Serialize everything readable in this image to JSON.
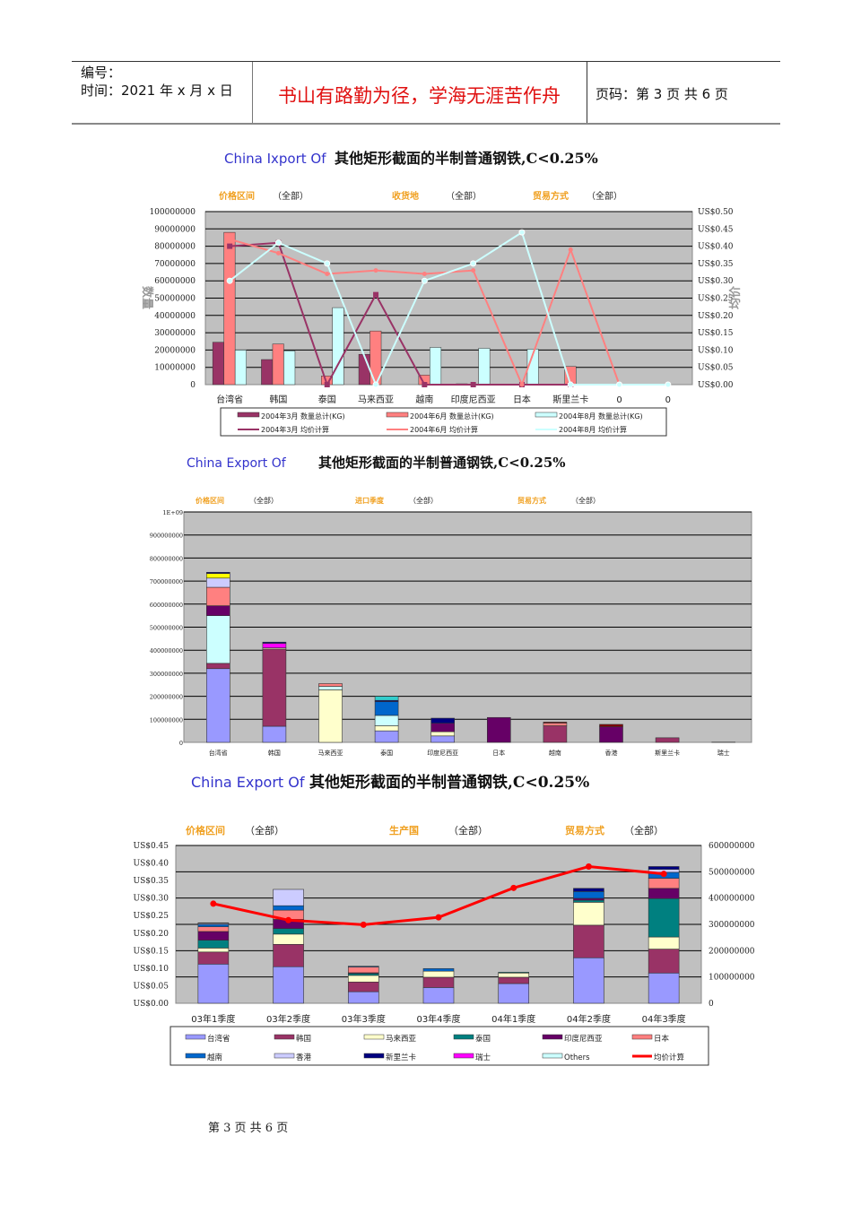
{
  "header": {
    "number_label": "编号：",
    "date_label": "时间：2021 年 x 月 x 日",
    "motto": "书山有路勤为径，学海无涯苦作舟",
    "page_info": "页码：第 3 页  共 6 页"
  },
  "footer": {
    "text": "第 3 页 共 6 页"
  },
  "colors": {
    "plot_bg": "#c0c0c0",
    "filter_label": "#f0a020",
    "title_en": "#3333cc",
    "motto": "#e01010"
  },
  "chart_data": [
    {
      "type": "bar+line",
      "title_en": "China Ixport Of",
      "title_cn": "其他矩形截面的半制普通钢铁,C<0.25%",
      "filters": [
        {
          "label": "价格区间",
          "value": "（全部）"
        },
        {
          "label": "收货地",
          "value": "（全部）"
        },
        {
          "label": "贸易方式",
          "value": "（全部）"
        }
      ],
      "ylabel": "数量",
      "y2label": "均价",
      "ylim": [
        0,
        100000000
      ],
      "y2lim": [
        0,
        0.5
      ],
      "yticks": [
        "0",
        "10000000",
        "20000000",
        "30000000",
        "40000000",
        "50000000",
        "60000000",
        "70000000",
        "80000000",
        "90000000",
        "100000000"
      ],
      "y2ticks": [
        "US$0.00",
        "US$0.05",
        "US$0.10",
        "US$0.15",
        "US$0.20",
        "US$0.25",
        "US$0.30",
        "US$0.35",
        "US$0.40",
        "US$0.45",
        "US$0.50"
      ],
      "categories": [
        "台湾省",
        "韩国",
        "泰国",
        "马来西亚",
        "越南",
        "印度尼西亚",
        "日本",
        "斯里兰卡",
        "0",
        "0"
      ],
      "bar_series": [
        {
          "name": "2004年3月 数量总计(KG)",
          "color": "#993366",
          "values": [
            24500000,
            14500000,
            0,
            17500000,
            0,
            500000,
            0,
            0,
            0,
            0
          ]
        },
        {
          "name": "2004年6月 数量总计(KG)",
          "color": "#ff8080",
          "values": [
            88000000,
            23500000,
            5000000,
            31000000,
            5500000,
            0,
            0,
            10500000,
            0,
            0
          ]
        },
        {
          "name": "2004年8月 数量总计(KG)",
          "color": "#ccffff",
          "values": [
            20000000,
            19500000,
            44500000,
            0,
            21500000,
            21000000,
            20500000,
            0,
            0,
            0
          ]
        }
      ],
      "line_series": [
        {
          "name": "2004年3月 均价计算",
          "color": "#993366",
          "marker": "square",
          "values": [
            0.4,
            0.41,
            0,
            0.26,
            0,
            0,
            0,
            0,
            null,
            null
          ]
        },
        {
          "name": "2004年6月 均价计算",
          "color": "#ff8080",
          "marker": "plus",
          "values": [
            0.42,
            0.38,
            0.32,
            0.33,
            0.32,
            0.33,
            0,
            0.39,
            0,
            null
          ]
        },
        {
          "name": "2004年8月 均价计算",
          "color": "#ccffff",
          "marker": "circle",
          "values": [
            0.3,
            0.41,
            0.35,
            0,
            0.3,
            0.35,
            0.44,
            0,
            0,
            0
          ]
        }
      ],
      "grid": true,
      "legend": "bottom"
    },
    {
      "type": "stacked-bar",
      "title_en": "China Export Of",
      "title_cn": "其他矩形截面的半制普通钢铁,C<0.25%",
      "filters": [
        {
          "label": "价格区间",
          "value": "（全部）"
        },
        {
          "label": "进口季度",
          "value": "（全部）"
        },
        {
          "label": "贸易方式",
          "value": "（全部）"
        }
      ],
      "ylim": [
        0,
        1000000000
      ],
      "yticks": [
        "0",
        "100000000",
        "200000000",
        "300000000",
        "400000000",
        "500000000",
        "600000000",
        "700000000",
        "800000000",
        "900000000",
        "1E+09"
      ],
      "categories": [
        "台湾省",
        "韩国",
        "马来西亚",
        "泰国",
        "印度尼西亚",
        "日本",
        "越南",
        "香港",
        "斯里兰卡",
        "瑞士"
      ],
      "series": [
        {
          "color": "#9999ff",
          "values": [
            320000000,
            70000000,
            0,
            50000000,
            28000000,
            0,
            0,
            0,
            0,
            0
          ]
        },
        {
          "color": "#993366",
          "values": [
            23000000,
            335000000,
            0,
            0,
            0,
            0,
            72000000,
            0,
            20000000,
            1000000
          ]
        },
        {
          "color": "#ffffcc",
          "values": [
            0,
            5000000,
            228000000,
            22000000,
            18000000,
            0,
            0,
            0,
            0,
            0
          ]
        },
        {
          "color": "#ccffff",
          "values": [
            207000000,
            0,
            15000000,
            45000000,
            0,
            0,
            0,
            0,
            0,
            0
          ]
        },
        {
          "color": "#660066",
          "values": [
            43000000,
            0,
            0,
            0,
            37000000,
            108000000,
            0,
            68000000,
            0,
            0
          ]
        },
        {
          "color": "#ff8080",
          "values": [
            80000000,
            0,
            12000000,
            0,
            0,
            0,
            12000000,
            0,
            0,
            0
          ]
        },
        {
          "color": "#0066cc",
          "values": [
            0,
            0,
            0,
            60000000,
            0,
            0,
            0,
            0,
            0,
            0
          ]
        },
        {
          "color": "#ccccff",
          "values": [
            40000000,
            0,
            0,
            0,
            0,
            0,
            0,
            0,
            0,
            0
          ]
        },
        {
          "color": "#ffff00",
          "values": [
            20000000,
            0,
            0,
            0,
            0,
            0,
            0,
            0,
            0,
            0
          ]
        },
        {
          "color": "#ff00ff",
          "values": [
            0,
            20000000,
            0,
            0,
            0,
            0,
            0,
            0,
            0,
            0
          ]
        },
        {
          "color": "#000080",
          "values": [
            5000000,
            5000000,
            0,
            5000000,
            22000000,
            0,
            0,
            0,
            0,
            0
          ]
        },
        {
          "color": "#33cccc",
          "values": [
            0,
            0,
            0,
            18000000,
            0,
            0,
            0,
            0,
            0,
            0
          ]
        },
        {
          "color": "#800000",
          "values": [
            0,
            0,
            0,
            0,
            0,
            0,
            4000000,
            10000000,
            0,
            0
          ]
        }
      ],
      "grid": true
    },
    {
      "type": "stacked-bar+line",
      "title_en": "China Export Of",
      "title_cn": "其他矩形截面的半制普通钢铁,C<0.25%",
      "filters": [
        {
          "label": "价格区间",
          "value": "（全部）"
        },
        {
          "label": "生产国",
          "value": "（全部）"
        },
        {
          "label": "贸易方式",
          "value": "（全部）"
        }
      ],
      "ylim": [
        0,
        600000000
      ],
      "y2lim": [
        0,
        0.45
      ],
      "yticks": [
        "0",
        "100000000",
        "200000000",
        "300000000",
        "400000000",
        "500000000",
        "600000000"
      ],
      "y2ticks": [
        "US$0.00",
        "US$0.05",
        "US$0.10",
        "US$0.15",
        "US$0.20",
        "US$0.25",
        "US$0.30",
        "US$0.35",
        "US$0.40",
        "US$0.45"
      ],
      "categories": [
        "03年1季度",
        "03年2季度",
        "03年3季度",
        "03年4季度",
        "04年1季度",
        "04年2季度",
        "04年3季度"
      ],
      "series": [
        {
          "name": "台湾省",
          "color": "#9999ff",
          "values": [
            149000000,
            139000000,
            44000000,
            60000000,
            75000000,
            173000000,
            115000000
          ]
        },
        {
          "name": "韩国",
          "color": "#993366",
          "values": [
            46000000,
            85000000,
            37000000,
            39000000,
            24000000,
            124000000,
            91000000
          ]
        },
        {
          "name": "马来西亚",
          "color": "#ffffcc",
          "values": [
            15000000,
            39000000,
            25000000,
            23000000,
            16000000,
            87000000,
            46000000
          ]
        },
        {
          "name": "泰国",
          "color": "#008080",
          "values": [
            30000000,
            21000000,
            7000000,
            0,
            3000000,
            8000000,
            146000000
          ]
        },
        {
          "name": "印度尼西亚",
          "color": "#660066",
          "values": [
            33000000,
            35000000,
            3000000,
            0,
            0,
            7000000,
            39000000
          ]
        },
        {
          "name": "日本",
          "color": "#ff8080",
          "values": [
            18000000,
            35000000,
            22000000,
            0,
            0,
            0,
            38000000
          ]
        },
        {
          "name": "越南",
          "color": "#0066cc",
          "values": [
            9000000,
            17000000,
            3000000,
            10000000,
            0,
            26000000,
            23000000
          ]
        },
        {
          "name": "香港",
          "color": "#ccccff",
          "values": [
            4000000,
            62000000,
            0,
            0,
            0,
            0,
            11000000
          ]
        },
        {
          "name": "新里兰卡",
          "color": "#000080",
          "values": [
            2000000,
            0,
            0,
            0,
            0,
            12000000,
            11000000
          ]
        },
        {
          "name": "瑞士",
          "color": "#ff00ff",
          "values": [
            0,
            0,
            0,
            0,
            0,
            0,
            0
          ]
        },
        {
          "name": "Others",
          "color": "#ccffff",
          "values": [
            0,
            0,
            0,
            0,
            0,
            0,
            0
          ]
        }
      ],
      "line_series": {
        "name": "均价计算",
        "color": "#ff0000",
        "values": [
          0.284,
          0.237,
          0.224,
          0.245,
          0.329,
          0.39,
          0.369
        ]
      },
      "grid": true,
      "legend": "bottom"
    }
  ]
}
